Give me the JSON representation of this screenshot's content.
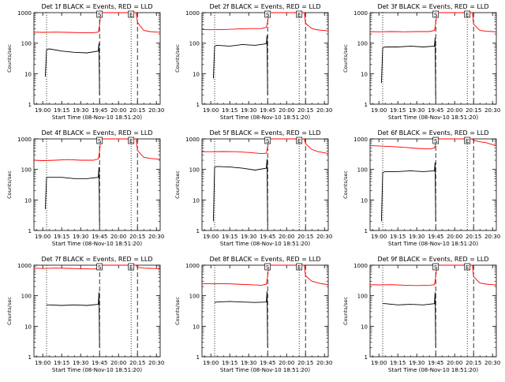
{
  "xtitle": "Start Time (08-Nov-10 18:51:20)",
  "ytitle": "Counts/sec",
  "colors": {
    "events": "#000000",
    "lld": "#ff0000",
    "axes": "#000000"
  },
  "chart_data": [
    {
      "type": "line",
      "title": "Det 1f BLACK = Events, RED = LLD",
      "xmin": "18:53",
      "xmax": "20:33",
      "x_ticks": [
        "19:00",
        "19:15",
        "19:30",
        "19:45",
        "20:00",
        "20:15",
        "20:30"
      ],
      "y_scale": "log",
      "ylim": [
        1,
        1000
      ],
      "y_ticks": [
        "1",
        "10",
        "100",
        "1000"
      ],
      "dotted_lines": [
        "19:03",
        "20:10"
      ],
      "dashed_lines": [
        "19:45",
        "20:15"
      ],
      "markers": [
        {
          "label": "S",
          "x": "19:45"
        },
        {
          "label": "E",
          "x": "20:10"
        }
      ],
      "series": [
        {
          "color": "red",
          "x": [
            "18:53",
            "19:00",
            "19:10",
            "19:20",
            "19:30",
            "19:40",
            "19:44",
            "19:45",
            "19:46",
            "20:14",
            "20:15",
            "20:20",
            "20:25",
            "20:30",
            "20:33"
          ],
          "y": [
            230,
            225,
            230,
            225,
            220,
            220,
            230,
            400,
            1000,
            1000,
            480,
            260,
            240,
            230,
            230
          ]
        },
        {
          "color": "black",
          "x": [
            "19:02",
            "19:03",
            "19:05",
            "19:15",
            "19:25",
            "19:35",
            "19:44",
            "19:44.5",
            "19:45"
          ],
          "y": [
            8,
            60,
            65,
            55,
            50,
            48,
            55,
            100,
            2
          ]
        }
      ]
    },
    {
      "type": "line",
      "title": "Det 2f BLACK = Events, RED = LLD",
      "xmin": "18:53",
      "xmax": "20:33",
      "x_ticks": [
        "19:00",
        "19:15",
        "19:30",
        "19:45",
        "20:00",
        "20:15",
        "20:30"
      ],
      "y_scale": "log",
      "ylim": [
        1,
        1000
      ],
      "y_ticks": [
        "1",
        "10",
        "100",
        "1000"
      ],
      "dotted_lines": [
        "19:03",
        "20:10"
      ],
      "dashed_lines": [
        "19:45",
        "20:15"
      ],
      "markers": [
        {
          "label": "S",
          "x": "19:45"
        },
        {
          "label": "E",
          "x": "20:10"
        }
      ],
      "series": [
        {
          "color": "red",
          "x": [
            "18:53",
            "19:00",
            "19:10",
            "19:20",
            "19:30",
            "19:40",
            "19:44",
            "19:45",
            "19:46",
            "20:14",
            "20:15",
            "20:20",
            "20:25",
            "20:30",
            "20:33"
          ],
          "y": [
            280,
            275,
            280,
            290,
            300,
            300,
            330,
            500,
            1000,
            1000,
            450,
            300,
            270,
            260,
            250
          ]
        },
        {
          "color": "black",
          "x": [
            "19:02",
            "19:03",
            "19:05",
            "19:15",
            "19:25",
            "19:35",
            "19:44",
            "19:44.5",
            "19:45"
          ],
          "y": [
            7,
            80,
            85,
            80,
            90,
            85,
            95,
            180,
            2
          ]
        }
      ]
    },
    {
      "type": "line",
      "title": "Det 3f BLACK = Events, RED = LLD",
      "xmin": "18:53",
      "xmax": "20:33",
      "x_ticks": [
        "19:00",
        "19:15",
        "19:30",
        "19:45",
        "20:00",
        "20:15",
        "20:30"
      ],
      "y_scale": "log",
      "ylim": [
        1,
        1000
      ],
      "y_ticks": [
        "1",
        "10",
        "100",
        "1000"
      ],
      "dotted_lines": [
        "19:03",
        "20:10"
      ],
      "dashed_lines": [
        "19:45",
        "20:15"
      ],
      "markers": [
        {
          "label": "S",
          "x": "19:45"
        },
        {
          "label": "E",
          "x": "20:10"
        }
      ],
      "series": [
        {
          "color": "red",
          "x": [
            "18:53",
            "19:00",
            "19:10",
            "19:20",
            "19:30",
            "19:40",
            "19:44",
            "19:45",
            "19:46",
            "20:14",
            "20:15",
            "20:20",
            "20:25",
            "20:30",
            "20:33"
          ],
          "y": [
            240,
            235,
            240,
            235,
            240,
            240,
            260,
            450,
            1000,
            1000,
            420,
            260,
            245,
            240,
            235
          ]
        },
        {
          "color": "black",
          "x": [
            "19:02",
            "19:03",
            "19:05",
            "19:15",
            "19:25",
            "19:35",
            "19:44",
            "19:44.5",
            "19:45"
          ],
          "y": [
            5,
            70,
            75,
            75,
            80,
            75,
            80,
            150,
            1.5
          ]
        }
      ]
    },
    {
      "type": "line",
      "title": "Det 4f BLACK = Events, RED = LLD",
      "xmin": "18:53",
      "xmax": "20:33",
      "x_ticks": [
        "19:00",
        "19:15",
        "19:30",
        "19:45",
        "20:00",
        "20:15",
        "20:30"
      ],
      "y_scale": "log",
      "ylim": [
        1,
        1000
      ],
      "y_ticks": [
        "1",
        "10",
        "100",
        "1000"
      ],
      "dotted_lines": [
        "19:03",
        "20:10"
      ],
      "dashed_lines": [
        "19:45",
        "20:15"
      ],
      "markers": [
        {
          "label": "S",
          "x": "19:45"
        },
        {
          "label": "E",
          "x": "20:10"
        }
      ],
      "series": [
        {
          "color": "red",
          "x": [
            "18:53",
            "19:00",
            "19:10",
            "19:20",
            "19:30",
            "19:40",
            "19:44",
            "19:45",
            "19:46",
            "20:14",
            "20:15",
            "20:20",
            "20:25",
            "20:30",
            "20:33"
          ],
          "y": [
            200,
            195,
            200,
            210,
            200,
            200,
            220,
            400,
            1000,
            1000,
            420,
            250,
            230,
            220,
            215
          ]
        },
        {
          "color": "black",
          "x": [
            "19:02",
            "19:03",
            "19:05",
            "19:15",
            "19:25",
            "19:35",
            "19:44",
            "19:44.5",
            "19:45"
          ],
          "y": [
            5,
            55,
            55,
            55,
            50,
            50,
            55,
            120,
            1.5
          ]
        }
      ]
    },
    {
      "type": "line",
      "title": "Det 5f BLACK = Events, RED = LLD",
      "xmin": "18:53",
      "xmax": "20:33",
      "x_ticks": [
        "19:00",
        "19:15",
        "19:30",
        "19:45",
        "20:00",
        "20:15",
        "20:30"
      ],
      "y_scale": "log",
      "ylim": [
        1,
        1000
      ],
      "y_ticks": [
        "1",
        "10",
        "100",
        "1000"
      ],
      "dotted_lines": [
        "19:03",
        "20:10"
      ],
      "dashed_lines": [
        "19:45",
        "20:15"
      ],
      "markers": [
        {
          "label": "S",
          "x": "19:45"
        },
        {
          "label": "E",
          "x": "20:10"
        }
      ],
      "series": [
        {
          "color": "red",
          "x": [
            "18:53",
            "19:00",
            "19:10",
            "19:20",
            "19:30",
            "19:40",
            "19:44",
            "19:45",
            "19:46",
            "20:14",
            "20:15",
            "20:20",
            "20:25",
            "20:30",
            "20:33"
          ],
          "y": [
            380,
            380,
            385,
            380,
            360,
            330,
            340,
            550,
            1000,
            1000,
            700,
            450,
            380,
            350,
            330
          ]
        },
        {
          "color": "black",
          "x": [
            "19:02",
            "19:03",
            "19:05",
            "19:15",
            "19:25",
            "19:35",
            "19:44",
            "19:44.5",
            "19:45"
          ],
          "y": [
            2,
            120,
            125,
            120,
            110,
            95,
            110,
            220,
            1.5
          ]
        }
      ]
    },
    {
      "type": "line",
      "title": "Det 6f BLACK = Events, RED = LLD",
      "xmin": "18:53",
      "xmax": "20:33",
      "x_ticks": [
        "19:00",
        "19:15",
        "19:30",
        "19:45",
        "20:00",
        "20:15",
        "20:30"
      ],
      "y_scale": "log",
      "ylim": [
        1,
        1000
      ],
      "y_ticks": [
        "1",
        "10",
        "100",
        "1000"
      ],
      "dotted_lines": [
        "19:03",
        "20:10"
      ],
      "dashed_lines": [
        "19:45",
        "20:15"
      ],
      "markers": [
        {
          "label": "S",
          "x": "19:45"
        },
        {
          "label": "E",
          "x": "20:10"
        }
      ],
      "series": [
        {
          "color": "red",
          "x": [
            "18:53",
            "19:00",
            "19:10",
            "19:20",
            "19:30",
            "19:40",
            "19:44",
            "19:45",
            "19:46",
            "20:14",
            "20:15",
            "20:20",
            "20:25",
            "20:30",
            "20:33"
          ],
          "y": [
            600,
            590,
            560,
            530,
            490,
            470,
            500,
            700,
            1000,
            1000,
            900,
            800,
            750,
            650,
            600
          ]
        },
        {
          "color": "black",
          "x": [
            "19:02",
            "19:03",
            "19:05",
            "19:15",
            "19:25",
            "19:35",
            "19:44",
            "19:44.5",
            "19:45"
          ],
          "y": [
            2,
            80,
            85,
            85,
            90,
            85,
            90,
            170,
            2
          ]
        }
      ]
    },
    {
      "type": "line",
      "title": "Det 7f BLACK = Events, RED = LLD",
      "xmin": "18:53",
      "xmax": "20:33",
      "x_ticks": [
        "19:00",
        "19:15",
        "19:30",
        "19:45",
        "20:00",
        "20:15",
        "20:30"
      ],
      "y_scale": "log",
      "ylim": [
        1,
        1000
      ],
      "y_ticks": [
        "1",
        "10",
        "100",
        "1000"
      ],
      "dotted_lines": [
        "19:03",
        "20:10"
      ],
      "dashed_lines": [
        "19:45",
        "20:15"
      ],
      "markers": [
        {
          "label": "S",
          "x": "19:45"
        },
        {
          "label": "E",
          "x": "20:10"
        }
      ],
      "series": [
        {
          "color": "red",
          "x": [
            "18:53",
            "19:00",
            "19:10",
            "19:20",
            "19:30",
            "19:40",
            "19:44",
            "19:45",
            "19:46",
            "20:14",
            "20:15",
            "20:20",
            "20:25",
            "20:30",
            "20:33"
          ],
          "y": [
            800,
            780,
            800,
            790,
            770,
            750,
            780,
            900,
            1000,
            1000,
            850,
            800,
            790,
            780,
            760
          ]
        },
        {
          "color": "black",
          "x": [
            "19:03",
            "19:05",
            "19:15",
            "19:25",
            "19:35",
            "19:44",
            "19:44.5",
            "19:45"
          ],
          "y": [
            50,
            50,
            48,
            50,
            48,
            52,
            130,
            2
          ]
        }
      ]
    },
    {
      "type": "line",
      "title": "Det 8f BLACK = Events, RED = LLD",
      "xmin": "18:53",
      "xmax": "20:33",
      "x_ticks": [
        "19:00",
        "19:15",
        "19:30",
        "19:45",
        "20:00",
        "20:15",
        "20:30"
      ],
      "y_scale": "log",
      "ylim": [
        1,
        1000
      ],
      "y_ticks": [
        "1",
        "10",
        "100",
        "1000"
      ],
      "dotted_lines": [
        "19:03",
        "20:10"
      ],
      "dashed_lines": [
        "19:45",
        "20:15"
      ],
      "markers": [
        {
          "label": "S",
          "x": "19:45"
        },
        {
          "label": "E",
          "x": "20:10"
        }
      ],
      "series": [
        {
          "color": "red",
          "x": [
            "18:53",
            "19:00",
            "19:10",
            "19:20",
            "19:30",
            "19:40",
            "19:44",
            "19:45",
            "19:46",
            "20:14",
            "20:15",
            "20:20",
            "20:25",
            "20:30",
            "20:33"
          ],
          "y": [
            250,
            245,
            250,
            240,
            230,
            220,
            240,
            450,
            1000,
            1000,
            450,
            300,
            260,
            240,
            230
          ]
        },
        {
          "color": "black",
          "x": [
            "19:03",
            "19:05",
            "19:15",
            "19:25",
            "19:35",
            "19:44",
            "19:44.5",
            "19:45"
          ],
          "y": [
            60,
            62,
            65,
            62,
            60,
            62,
            140,
            2
          ]
        }
      ]
    },
    {
      "type": "line",
      "title": "Det 9f BLACK = Events, RED = LLD",
      "xmin": "18:53",
      "xmax": "20:33",
      "x_ticks": [
        "19:00",
        "19:15",
        "19:30",
        "19:45",
        "20:00",
        "20:15",
        "20:30"
      ],
      "y_scale": "log",
      "ylim": [
        1,
        1000
      ],
      "y_ticks": [
        "1",
        "10",
        "100",
        "1000"
      ],
      "dotted_lines": [
        "19:03",
        "20:10"
      ],
      "dashed_lines": [
        "19:45",
        "20:15"
      ],
      "markers": [
        {
          "label": "S",
          "x": "19:45"
        },
        {
          "label": "E",
          "x": "20:10"
        }
      ],
      "series": [
        {
          "color": "red",
          "x": [
            "18:53",
            "19:00",
            "19:10",
            "19:20",
            "19:30",
            "19:40",
            "19:44",
            "19:45",
            "19:46",
            "20:14",
            "20:15",
            "20:20",
            "20:25",
            "20:30",
            "20:33"
          ],
          "y": [
            230,
            225,
            230,
            220,
            215,
            220,
            230,
            420,
            1000,
            1000,
            420,
            260,
            240,
            230,
            225
          ]
        },
        {
          "color": "black",
          "x": [
            "19:03",
            "19:05",
            "19:15",
            "19:25",
            "19:35",
            "19:44",
            "19:44.5",
            "19:45"
          ],
          "y": [
            55,
            55,
            50,
            52,
            50,
            55,
            130,
            2
          ]
        }
      ]
    }
  ]
}
